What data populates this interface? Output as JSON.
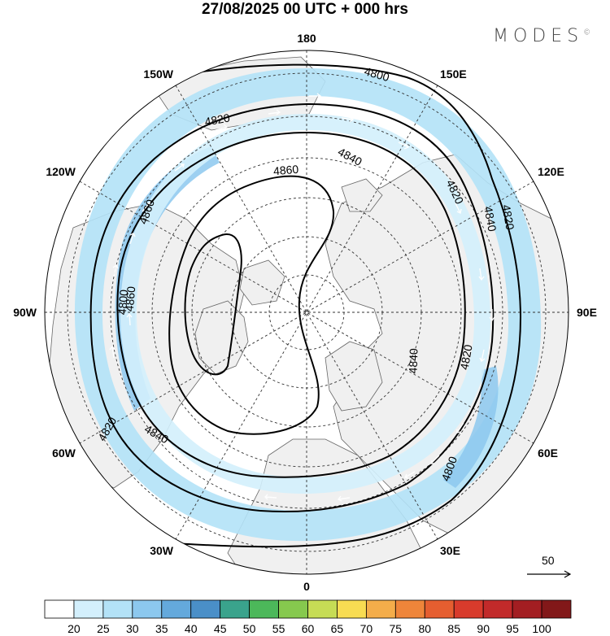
{
  "title": "27/08/2025  00 UTC  + 000 hrs",
  "brand": "MODES",
  "brand_mark": "©",
  "map": {
    "type": "north-polar-stereographic",
    "longitude_labels": [
      {
        "text": "180",
        "lon": 180
      },
      {
        "text": "150E",
        "lon": 150
      },
      {
        "text": "120E",
        "lon": 120
      },
      {
        "text": "90E",
        "lon": 90
      },
      {
        "text": "60E",
        "lon": 60
      },
      {
        "text": "30E",
        "lon": 30
      },
      {
        "text": "0",
        "lon": 0
      },
      {
        "text": "30W",
        "lon": -30
      },
      {
        "text": "60W",
        "lon": -60
      },
      {
        "text": "90W",
        "lon": -90
      },
      {
        "text": "120W",
        "lon": -120
      },
      {
        "text": "150W",
        "lon": -150
      }
    ],
    "contour_labels": [
      "4800",
      "4820",
      "4840",
      "4860",
      "4860",
      "4840",
      "4820",
      "4800",
      "4820",
      "4840",
      "4860",
      "4820",
      "4840",
      "4820",
      "4800"
    ],
    "wind_scale_label": "50"
  },
  "colorbar": {
    "labels": [
      "20",
      "25",
      "30",
      "35",
      "40",
      "45",
      "50",
      "55",
      "60",
      "65",
      "70",
      "75",
      "80",
      "85",
      "90",
      "95",
      "100"
    ],
    "colors": [
      "#ffffff",
      "#d3effc",
      "#b3e2f7",
      "#8cc8ee",
      "#64a9dc",
      "#4a8fc8",
      "#3aa38c",
      "#4cb85a",
      "#86c94e",
      "#c6dc55",
      "#f8dc52",
      "#f4ad4a",
      "#ee853a",
      "#e55e30",
      "#d83b2c",
      "#c22a2a",
      "#a31e22",
      "#821819"
    ]
  }
}
